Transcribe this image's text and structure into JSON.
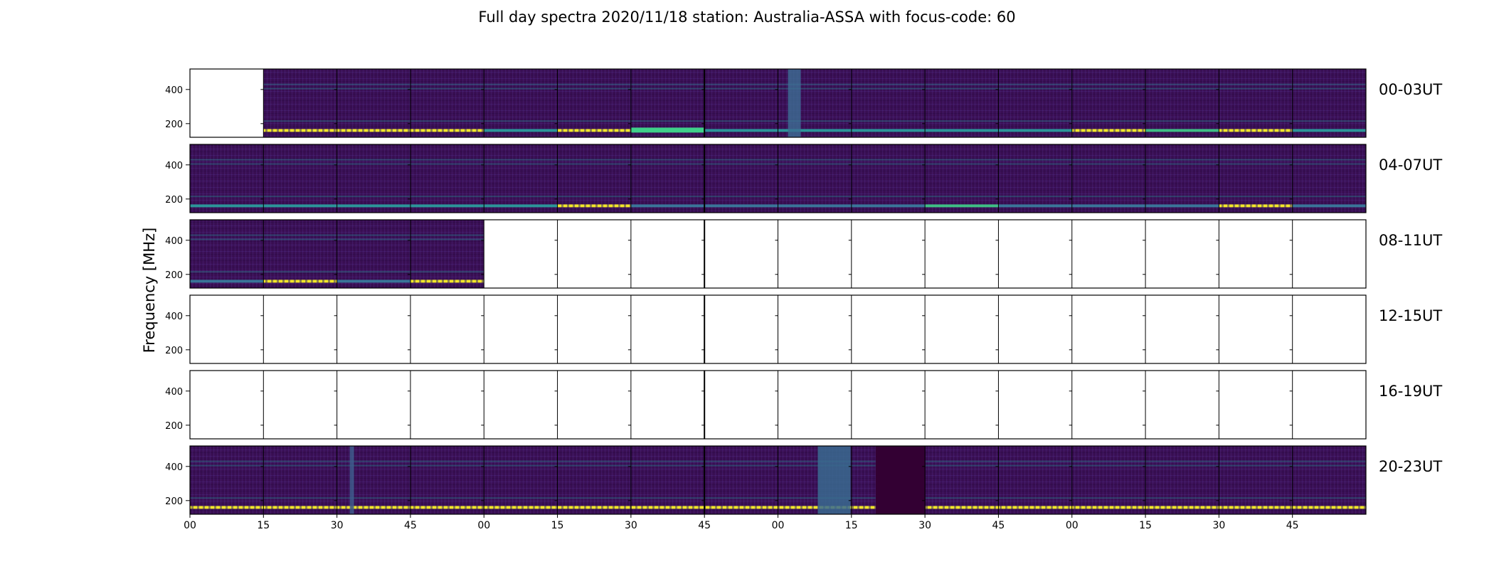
{
  "title": "Full day spectra 2020/11/18 station: Australia-ASSA with focus-code: 60",
  "colors": {
    "background_low": "#3b0f55",
    "band_cyan": "#2aa3a0",
    "band_green": "#3fd08a",
    "band_yellow": "#f2e62a",
    "no_data": "#ffffff",
    "dark_block": "#330033"
  },
  "chart_data": {
    "type": "heatmap",
    "title": "Full day spectra 2020/11/18 station: Australia-ASSA with focus-code: 60",
    "ylabel": "Frequency [MHz]",
    "xlabel": "",
    "colormap": "viridis",
    "ylim": [
      120,
      520
    ],
    "yticks": [
      200,
      400
    ],
    "ytick_labels": [
      "200",
      "400"
    ],
    "segment_minutes": 15,
    "segments_per_row": 16,
    "xtick_labels": [
      "00",
      "15",
      "30",
      "45",
      "00",
      "15",
      "30",
      "45",
      "00",
      "15",
      "30",
      "45",
      "00",
      "15",
      "30",
      "45"
    ],
    "rows": [
      {
        "label": "00-03UT",
        "has_data": [
          false,
          true,
          true,
          true,
          true,
          true,
          true,
          true,
          true,
          true,
          true,
          true,
          true,
          true,
          true,
          true
        ],
        "band_levels_160MHz": [
          0,
          1,
          1,
          1,
          0.4,
          1,
          0.7,
          0.4,
          0.4,
          0.4,
          0.4,
          0.4,
          1,
          0.8,
          1,
          0.4
        ]
      },
      {
        "label": "04-07UT",
        "has_data": [
          true,
          true,
          true,
          true,
          true,
          true,
          true,
          true,
          true,
          true,
          true,
          true,
          true,
          true,
          true,
          true
        ],
        "band_levels_160MHz": [
          0.4,
          0.4,
          0.4,
          0.4,
          0.4,
          1,
          0.2,
          0.2,
          0.2,
          0.2,
          0.7,
          0.2,
          0.2,
          0.2,
          1,
          0.2
        ]
      },
      {
        "label": "08-11UT",
        "has_data": [
          true,
          true,
          true,
          true,
          false,
          false,
          false,
          false,
          false,
          false,
          false,
          false,
          false,
          false,
          false,
          false
        ],
        "band_levels_160MHz": [
          0.2,
          1,
          0.2,
          1,
          0,
          0,
          0,
          0,
          0,
          0,
          0,
          0,
          0,
          0,
          0,
          0
        ]
      },
      {
        "label": "12-15UT",
        "has_data": [
          false,
          false,
          false,
          false,
          false,
          false,
          false,
          false,
          false,
          false,
          false,
          false,
          false,
          false,
          false,
          false
        ],
        "band_levels_160MHz": [
          0,
          0,
          0,
          0,
          0,
          0,
          0,
          0,
          0,
          0,
          0,
          0,
          0,
          0,
          0,
          0
        ]
      },
      {
        "label": "16-19UT",
        "has_data": [
          false,
          false,
          false,
          false,
          false,
          false,
          false,
          false,
          false,
          false,
          false,
          false,
          false,
          false,
          false,
          false
        ],
        "band_levels_160MHz": [
          0,
          0,
          0,
          0,
          0,
          0,
          0,
          0,
          0,
          0,
          0,
          0,
          0,
          0,
          0,
          0
        ]
      },
      {
        "label": "20-23UT",
        "has_data": [
          true,
          true,
          true,
          true,
          true,
          true,
          true,
          true,
          true,
          true,
          true,
          true,
          true,
          true,
          true,
          true
        ],
        "band_levels_160MHz": [
          1,
          1,
          1,
          1,
          1,
          1,
          1,
          1,
          1,
          1,
          1,
          1,
          1,
          1,
          1,
          1
        ]
      }
    ]
  }
}
